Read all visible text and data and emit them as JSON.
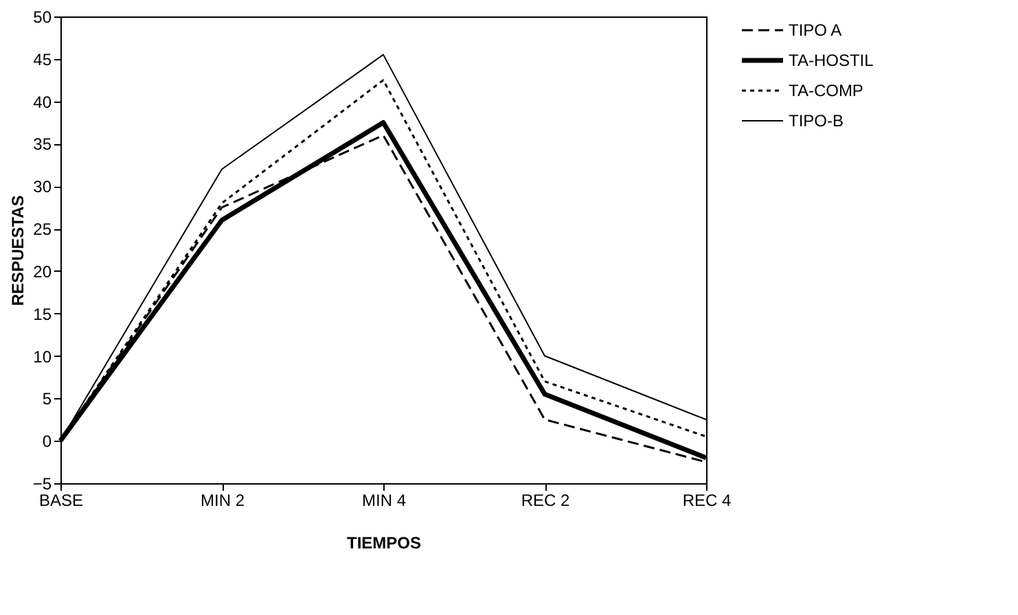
{
  "chart_data": {
    "type": "line",
    "xlabel": "TIEMPOS",
    "ylabel": "RESPUESTAS",
    "categories": [
      "BASE",
      "MIN 2",
      "MIN 4",
      "REC 2",
      "REC 4"
    ],
    "series": [
      {
        "name": "TIPO A",
        "color": "#000000",
        "line_style": "dashed",
        "values": [
          0,
          27.5,
          36,
          2.5,
          -2.5
        ]
      },
      {
        "name": "TA-HOSTIL",
        "color": "#000000",
        "line_style": "solid",
        "values": [
          0,
          26,
          37.5,
          5.5,
          -2
        ]
      },
      {
        "name": "TA-COMP",
        "color": "#000000",
        "line_style": "dotted",
        "values": [
          0,
          28,
          42.5,
          7,
          0.5
        ]
      },
      {
        "name": "TIPO-B",
        "color": "#000000",
        "line_style": "solid",
        "values": [
          0,
          32,
          45.5,
          10,
          2.5
        ]
      }
    ],
    "ylim": [
      -5,
      50
    ],
    "yticks": [
      -5,
      0,
      5,
      10,
      15,
      20,
      25,
      30,
      35,
      40,
      45,
      50
    ],
    "grid": false,
    "legend": "top right",
    "marker": "none"
  }
}
